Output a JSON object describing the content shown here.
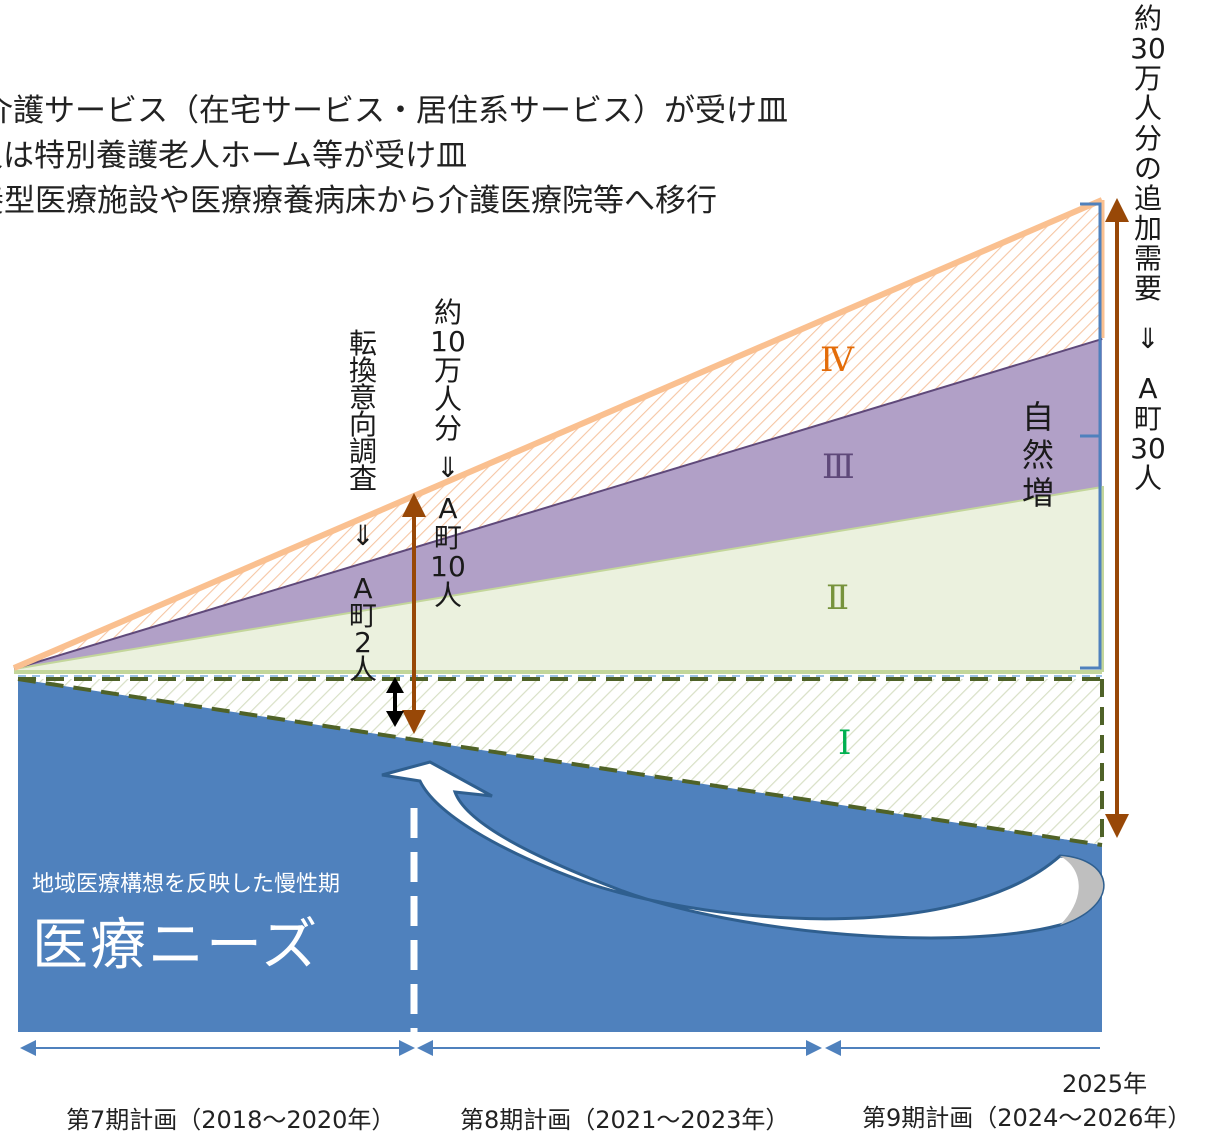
{
  "legend": [
    "介護サービス（在宅サービス・居住系サービス）が受け皿",
    "又は特別養護老人ホーム等が受け皿",
    "療養型医療施設や医療療養病床から介護医療院等へ移行"
  ],
  "labels": {
    "conversion_survey": [
      "転",
      "換",
      "意",
      "向",
      "調",
      "査",
      "⇓",
      "A",
      "町",
      "2",
      "人"
    ],
    "ten_thousand": [
      "約",
      "10",
      "万",
      "人",
      "分",
      "⇓",
      "A",
      "町",
      "10",
      "人"
    ],
    "thirty_thousand": [
      "約",
      "30",
      "万",
      "人",
      "分",
      "の",
      "追",
      "加",
      "需",
      "要",
      "⇓",
      "A",
      "町",
      "30",
      "人"
    ],
    "natural_increase": [
      "自",
      "然",
      "増"
    ]
  },
  "zones": {
    "I": "Ⅰ",
    "II": "Ⅱ",
    "III": "Ⅲ",
    "IV": "Ⅳ"
  },
  "medical_needs": {
    "subtitle": "地域医療構想を反映した慢性期",
    "title": "医療ニーズ"
  },
  "periods": {
    "p7": "第7期計画（2018～2020年）",
    "p8": "第8期計画（2021～2023年）",
    "p9": "第9期計画（2024～2026年）",
    "year": "2025年"
  },
  "colors": {
    "medical_blue": "#4f81bd",
    "zone_I_line": "#4f6228",
    "zone_II_fill": "#ebf1de",
    "zone_II_line": "#c3d69b",
    "zone_III_fill": "#b1a0c7",
    "zone_III_line": "#5f497a",
    "zone_IV_line": "#fac090",
    "arrow_brown": "#984807",
    "roman_IV": "#e36c09",
    "roman_III": "#5f497a",
    "roman_II": "#77933c",
    "roman_I": "#00b050"
  }
}
